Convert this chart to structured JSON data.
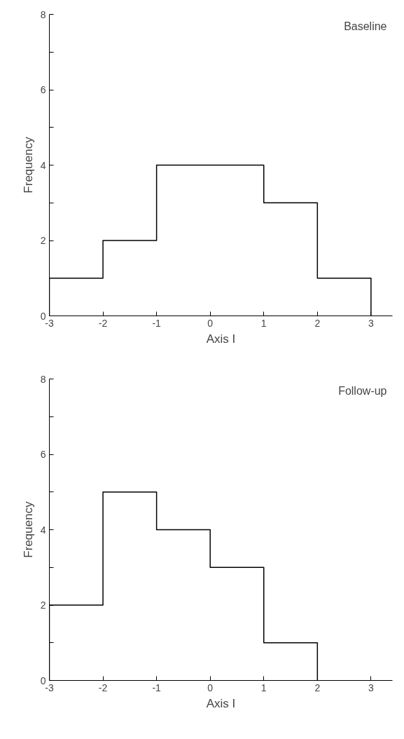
{
  "chart_data": [
    {
      "type": "histogram",
      "title": "Baseline",
      "xlabel": "Axis I",
      "ylabel": "Frequency",
      "bins": [
        -3,
        -2,
        -1,
        0,
        1,
        2,
        3
      ],
      "values": [
        1,
        2,
        4,
        4,
        3,
        1
      ],
      "color": "#000000",
      "xlim": [
        -3,
        3.4
      ],
      "ylim": [
        0,
        8
      ],
      "xticks": [
        -3,
        -2,
        -1,
        0,
        1,
        2,
        3
      ],
      "yticks": [
        0,
        {
          "value": 1,
          "label": null
        },
        2,
        {
          "value": 3,
          "label": null
        },
        4,
        {
          "value": 5,
          "label": null
        },
        6,
        {
          "value": 7,
          "label": null
        },
        8
      ],
      "grid": false
    },
    {
      "type": "histogram",
      "title": "Follow-up",
      "xlabel": "Axis I",
      "ylabel": "Frequency",
      "bins": [
        -3,
        -2,
        -1,
        0,
        1,
        2
      ],
      "values": [
        2,
        5,
        4,
        3,
        1
      ],
      "color": "#000000",
      "xlim": [
        -3,
        3.4
      ],
      "ylim": [
        0,
        8
      ],
      "xticks": [
        -3,
        -2,
        -1,
        0,
        1,
        2,
        3
      ],
      "yticks": [
        0,
        {
          "value": 1,
          "label": null
        },
        2,
        {
          "value": 3,
          "label": null
        },
        4,
        {
          "value": 5,
          "label": null
        },
        6,
        {
          "value": 7,
          "label": null
        },
        8
      ],
      "grid": false
    }
  ]
}
